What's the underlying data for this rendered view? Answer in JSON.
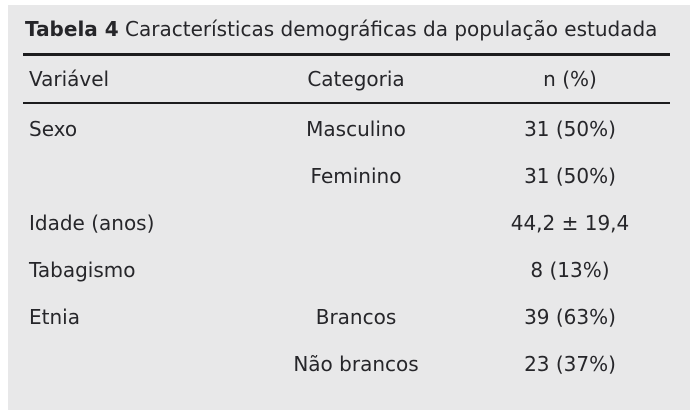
{
  "table": {
    "title_label": "Tabela 4",
    "title_text": "Características demográficas da população estudada",
    "columns": [
      "Variável",
      "Categoria",
      "n (%)"
    ],
    "rows": [
      {
        "variable": "Sexo",
        "category": "Masculino",
        "value": "31 (50%)"
      },
      {
        "variable": "",
        "category": "Feminino",
        "value": "31 (50%)"
      },
      {
        "variable": "Idade (anos)",
        "category": "",
        "value": "44,2 ± 19,4"
      },
      {
        "variable": "Tabagismo",
        "category": "",
        "value": "8 (13%)"
      },
      {
        "variable": "Etnia",
        "category": "Brancos",
        "value": "39 (63%)"
      },
      {
        "variable": "",
        "category": "Não brancos",
        "value": "23 (37%)"
      }
    ]
  },
  "colors": {
    "panel_background": "#e8e8e9",
    "text": "#26262a",
    "rule": "#1c1c1e"
  },
  "chart_data": {
    "type": "table",
    "title": "Tabela 4 Características demográficas da população estudada",
    "columns": [
      "Variável",
      "Categoria",
      "n (%)"
    ],
    "rows": [
      [
        "Sexo",
        "Masculino",
        "31 (50%)"
      ],
      [
        "",
        "Feminino",
        "31 (50%)"
      ],
      [
        "Idade (anos)",
        "",
        "44,2 ± 19,4"
      ],
      [
        "Tabagismo",
        "",
        "8 (13%)"
      ],
      [
        "Etnia",
        "Brancos",
        "39 (63%)"
      ],
      [
        "",
        "Não brancos",
        "23 (37%)"
      ]
    ]
  }
}
